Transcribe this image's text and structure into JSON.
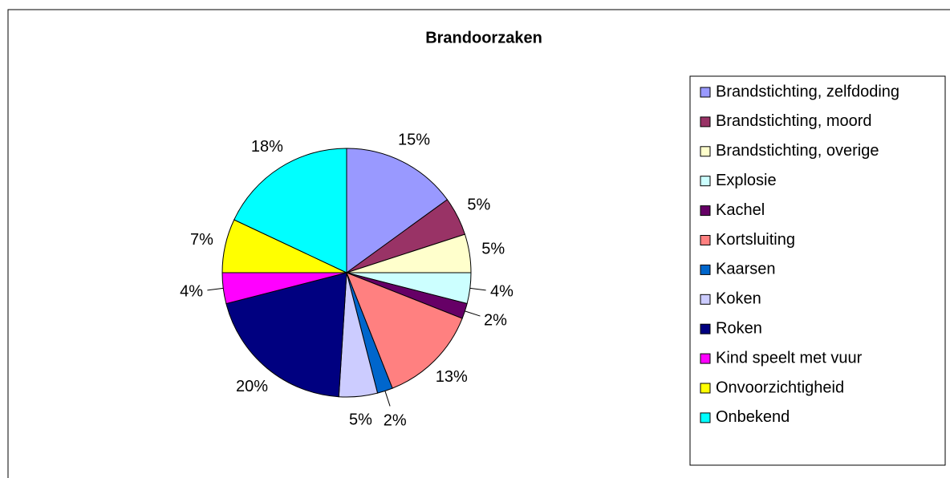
{
  "chart_data": {
    "type": "pie",
    "title": "Brandoorzaken",
    "categories": [
      "Brandstichting, zelfdoding",
      "Brandstichting, moord",
      "Brandstichting, overige",
      "Explosie",
      "Kachel",
      "Kortsluiting",
      "Kaarsen",
      "Koken",
      "Roken",
      "Kind speelt met vuur",
      "Onvoorzichtigheid",
      "Onbekend"
    ],
    "values": [
      15,
      5,
      5,
      4,
      2,
      13,
      2,
      5,
      20,
      4,
      7,
      18
    ],
    "value_labels": [
      "15%",
      "5%",
      "5%",
      "4%",
      "2%",
      "13%",
      "2%",
      "5%",
      "20%",
      "4%",
      "7%",
      "18%"
    ],
    "colors": [
      "#9999ff",
      "#993366",
      "#ffffcc",
      "#ccffff",
      "#660066",
      "#ff8080",
      "#0066cc",
      "#ccccff",
      "#000080",
      "#ff00ff",
      "#ffff00",
      "#00ffff"
    ],
    "legend": "right"
  }
}
